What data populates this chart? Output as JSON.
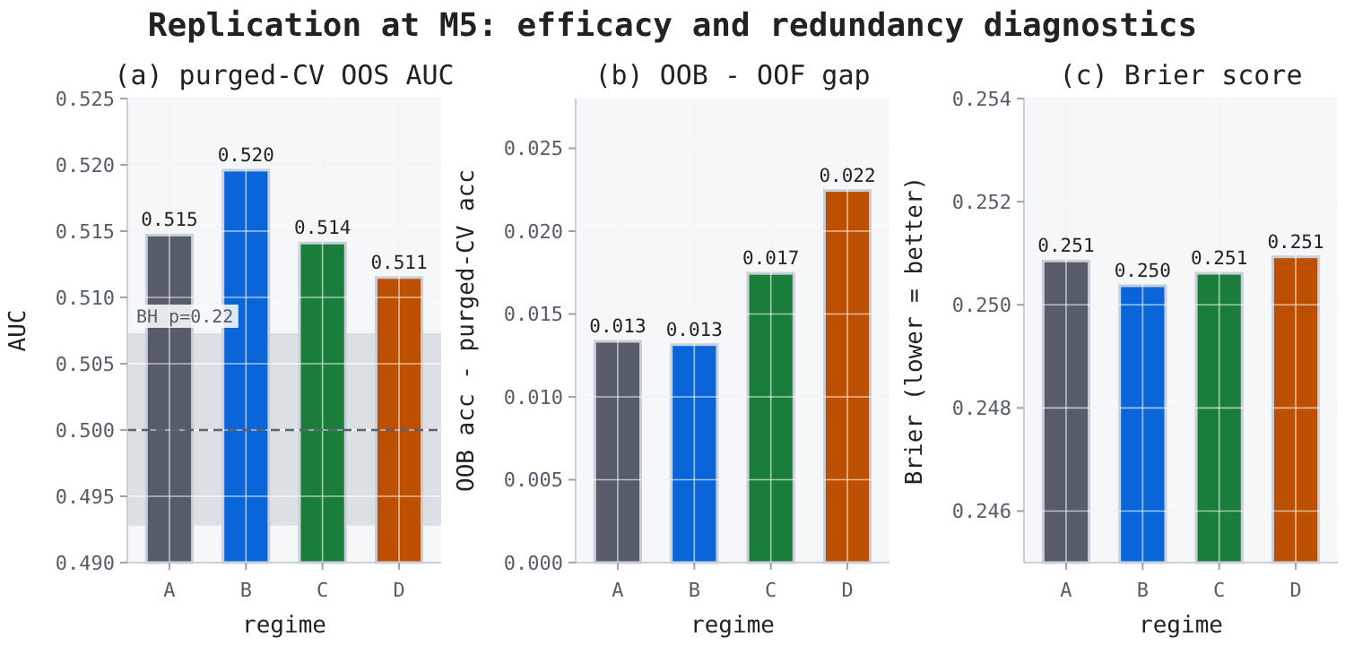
{
  "chart_data": [
    {
      "type": "bar",
      "title": "(a) purged-CV OOS AUC",
      "xlabel": "regime",
      "ylabel": "AUC",
      "categories": [
        "A",
        "B",
        "C",
        "D"
      ],
      "values": [
        0.5147,
        0.5196,
        0.5141,
        0.5115
      ],
      "colors": [
        "#565d68",
        "#0a66d8",
        "#1b7d3a",
        "#bd4f00"
      ],
      "value_labels": [
        "0.515",
        "0.520",
        "0.514",
        "0.511"
      ],
      "ylim": [
        0.49,
        0.525
      ],
      "yticks": [
        {
          "value": 0.49,
          "label": "0.490"
        },
        0.495,
        {
          "value": 0.5,
          "label": "0.500"
        },
        0.505,
        {
          "value": 0.51,
          "label": "0.510"
        },
        0.515,
        {
          "value": 0.52,
          "label": "0.520"
        },
        0.525
      ],
      "grid": true,
      "annotations": [
        "Replication at M5: efficacy and redundancy diagnostics"
      ],
      "ref_lines": [
        {
          "axis": "y",
          "value": 0.5,
          "color": "#5b6270",
          "line_style": "dashed"
        }
      ],
      "bands": [
        {
          "axis": "y",
          "from": 0.4928,
          "to": 0.5073,
          "color": "#dcdfe3",
          "label": "BH p=0.22"
        }
      ]
    },
    {
      "type": "bar",
      "title": "(b) OOB - OOF gap",
      "xlabel": "regime",
      "ylabel": "OOB acc - purged-CV acc",
      "categories": [
        "A",
        "B",
        "C",
        "D"
      ],
      "values": [
        0.01335,
        0.01315,
        0.01745,
        0.02245
      ],
      "colors": [
        "#565d68",
        "#0a66d8",
        "#1b7d3a",
        "#bd4f00"
      ],
      "value_labels": [
        "0.013",
        "0.013",
        "0.017",
        "0.022"
      ],
      "ylim": [
        0,
        0.028
      ],
      "yticks": [
        {
          "value": 0,
          "label": "0.000"
        },
        0.005,
        {
          "value": 0.01,
          "label": "0.010"
        },
        0.015,
        {
          "value": 0.02,
          "label": "0.020"
        },
        0.025
      ],
      "grid": true
    },
    {
      "type": "bar",
      "title": "(c) Brier score",
      "xlabel": "regime",
      "ylabel": "Brier (lower = better)",
      "categories": [
        "A",
        "B",
        "C",
        "D"
      ],
      "values": [
        0.25085,
        0.25037,
        0.25061,
        0.25093
      ],
      "colors": [
        "#565d68",
        "#0a66d8",
        "#1b7d3a",
        "#bd4f00"
      ],
      "value_labels": [
        "0.251",
        "0.250",
        "0.251",
        "0.251"
      ],
      "ylim": [
        0.245,
        0.254
      ],
      "yticks": [
        0.246,
        0.248,
        {
          "value": 0.25,
          "label": "0.250"
        },
        0.252,
        0.254
      ],
      "grid": true
    }
  ]
}
